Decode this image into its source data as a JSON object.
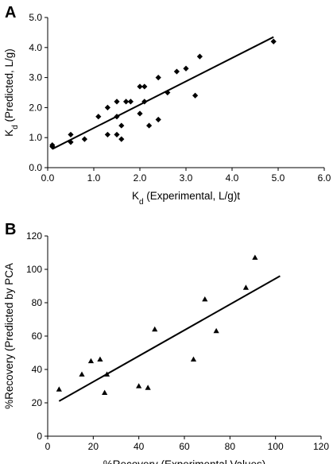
{
  "chart_data": [
    {
      "panel": "A",
      "type": "scatter",
      "marker": "diamond",
      "xlim": [
        0,
        6
      ],
      "ylim": [
        0,
        5
      ],
      "xticks": [
        "0.0",
        "1.0",
        "2.0",
        "3.0",
        "4.0",
        "5.0",
        "6.0"
      ],
      "yticks": [
        "0.0",
        "1.0",
        "2.0",
        "3.0",
        "4.0",
        "5.0"
      ],
      "xlabel": {
        "main": "K",
        "sub": "d",
        "rest": " (Experimental, L/g)t"
      },
      "ylabel": {
        "main": "K",
        "sub": "d",
        "rest": " (Predicted, L/g)"
      },
      "points": [
        [
          0.1,
          0.75
        ],
        [
          0.1,
          0.7
        ],
        [
          0.5,
          0.85
        ],
        [
          0.5,
          1.1
        ],
        [
          0.8,
          0.95
        ],
        [
          1.1,
          1.7
        ],
        [
          1.3,
          1.1
        ],
        [
          1.3,
          2.0
        ],
        [
          1.5,
          2.2
        ],
        [
          1.5,
          1.7
        ],
        [
          1.5,
          1.1
        ],
        [
          1.6,
          1.4
        ],
        [
          1.6,
          0.95
        ],
        [
          1.7,
          2.2
        ],
        [
          1.8,
          2.2
        ],
        [
          2.0,
          1.8
        ],
        [
          2.0,
          2.7
        ],
        [
          2.1,
          2.7
        ],
        [
          2.1,
          2.2
        ],
        [
          2.2,
          1.4
        ],
        [
          2.4,
          3.0
        ],
        [
          2.4,
          1.6
        ],
        [
          2.6,
          2.5
        ],
        [
          2.8,
          3.2
        ],
        [
          3.0,
          3.3
        ],
        [
          3.2,
          2.4
        ],
        [
          3.3,
          3.7
        ],
        [
          4.9,
          4.2
        ]
      ],
      "trendline": [
        [
          0.1,
          0.62
        ],
        [
          4.9,
          4.35
        ]
      ]
    },
    {
      "panel": "B",
      "type": "scatter",
      "marker": "triangle",
      "xlim": [
        0,
        120
      ],
      "ylim": [
        0,
        120
      ],
      "xticks": [
        "0",
        "20",
        "40",
        "60",
        "80",
        "100",
        "120"
      ],
      "yticks": [
        "0",
        "20",
        "40",
        "60",
        "80",
        "100",
        "120"
      ],
      "xlabel": "%Recovery (Experimental Values)",
      "ylabel": "%Recovery (Predicted by PCA",
      "points": [
        [
          5,
          28
        ],
        [
          15,
          37
        ],
        [
          19,
          45
        ],
        [
          23,
          46
        ],
        [
          25,
          26
        ],
        [
          26,
          37
        ],
        [
          40,
          30
        ],
        [
          44,
          29
        ],
        [
          47,
          64
        ],
        [
          64,
          46
        ],
        [
          69,
          82
        ],
        [
          74,
          63
        ],
        [
          87,
          89
        ],
        [
          91,
          107
        ]
      ],
      "trendline": [
        [
          5,
          21
        ],
        [
          102,
          96
        ]
      ]
    }
  ]
}
